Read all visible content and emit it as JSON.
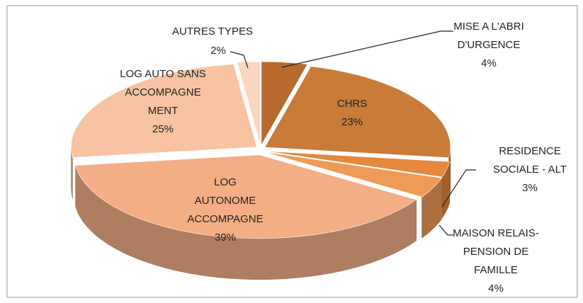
{
  "chart_data": {
    "type": "pie3d",
    "categories": [
      "MISE A L'ABRI\nD'URGENCE",
      "CHRS",
      "RESIDENCE\nSOCIALE - ALT",
      "MAISON RELAIS-\nPENSION DE\nFAMILLE",
      "LOG\nAUTONOME\nACCOMPAGNE",
      "LOG AUTO SANS\nACCOMPAGNE\nMENT",
      "AUTRES TYPES"
    ],
    "values": [
      4,
      23,
      3,
      4,
      39,
      25,
      2
    ],
    "value_labels": [
      "4%",
      "23%",
      "3%",
      "4%",
      "39%",
      "25%",
      "2%"
    ],
    "colors": [
      "#b8692e",
      "#c97b38",
      "#e5873f",
      "#f09a58",
      "#f3ae85",
      "#f7c3a2",
      "#fad6c0"
    ]
  }
}
